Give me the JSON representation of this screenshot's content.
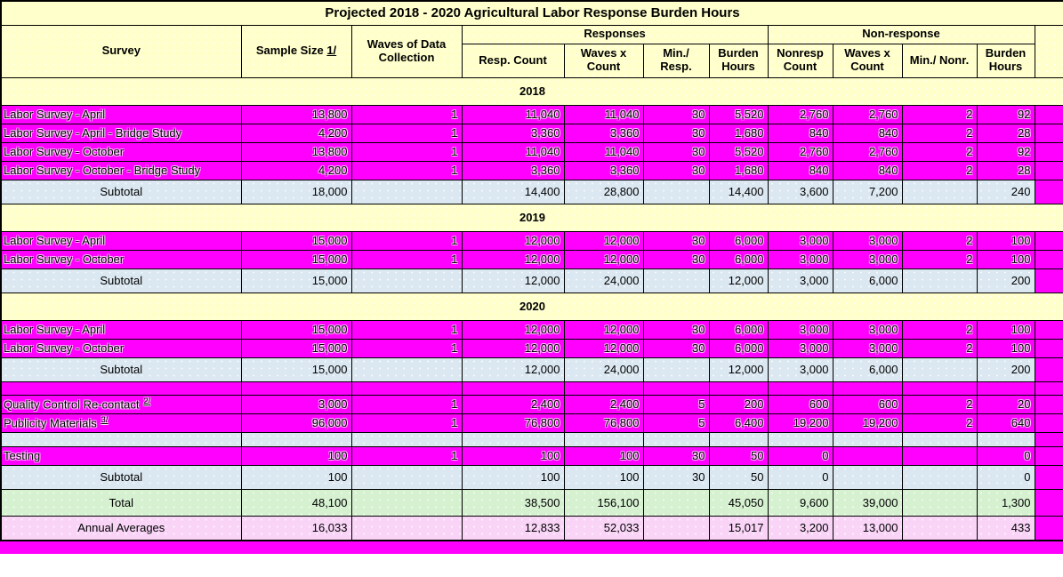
{
  "title": "Projected 2018 - 2020 Agricultural Labor Response Burden Hours",
  "colors": {
    "section_yellow": "#FFFFCC",
    "row_magenta": "#FF00FF",
    "subtotal_blue": "#DBE8F1",
    "total_green": "#D5F1D0",
    "annual_pink": "#F9D4F7",
    "border_black": "#000000"
  },
  "header": {
    "survey": "Survey",
    "sample_size": "Sample Size",
    "sample_size_footnote": "1/",
    "waves": "Waves of Data Collection",
    "responses_group": "Responses",
    "nonresponse_group": "Non-response",
    "sub": [
      "Resp. Count",
      "Waves x Count",
      "Min./ Resp.",
      "Burden Hours",
      "Nonresp Count",
      "Waves x Count",
      "Min./ Nonr.",
      "Burden Hours"
    ]
  },
  "rows": [
    {
      "type": "section",
      "label": "2018"
    },
    {
      "type": "data",
      "label": "Labor Survey - April",
      "values": [
        "13,800",
        "1",
        "11,040",
        "11,040",
        "30",
        "5,520",
        "2,760",
        "2,760",
        "2",
        "92"
      ]
    },
    {
      "type": "data",
      "label": "Labor Survey - April - Bridge Study",
      "values": [
        "4,200",
        "1",
        "3,360",
        "3,360",
        "30",
        "1,680",
        "840",
        "840",
        "2",
        "28"
      ]
    },
    {
      "type": "data",
      "label": "Labor Survey - October",
      "values": [
        "13,800",
        "1",
        "11,040",
        "11,040",
        "30",
        "5,520",
        "2,760",
        "2,760",
        "2",
        "92"
      ]
    },
    {
      "type": "data",
      "label": "Labor Survey - October - Bridge Study",
      "values": [
        "4,200",
        "1",
        "3,360",
        "3,360",
        "30",
        "1,680",
        "840",
        "840",
        "2",
        "28"
      ]
    },
    {
      "type": "subtotal",
      "label": "Subtotal",
      "values": [
        "18,000",
        "",
        "14,400",
        "28,800",
        "",
        "14,400",
        "3,600",
        "7,200",
        "",
        "240"
      ]
    },
    {
      "type": "section",
      "label": "2019"
    },
    {
      "type": "data",
      "label": "Labor Survey - April",
      "values": [
        "15,000",
        "1",
        "12,000",
        "12,000",
        "30",
        "6,000",
        "3,000",
        "3,000",
        "2",
        "100"
      ]
    },
    {
      "type": "data",
      "label": "Labor Survey - October",
      "values": [
        "15,000",
        "1",
        "12,000",
        "12,000",
        "30",
        "6,000",
        "3,000",
        "3,000",
        "2",
        "100"
      ]
    },
    {
      "type": "subtotal",
      "label": "Subtotal",
      "values": [
        "15,000",
        "",
        "12,000",
        "24,000",
        "",
        "12,000",
        "3,000",
        "6,000",
        "",
        "200"
      ]
    },
    {
      "type": "section",
      "label": "2020"
    },
    {
      "type": "data",
      "label": "Labor Survey - April",
      "values": [
        "15,000",
        "1",
        "12,000",
        "12,000",
        "30",
        "6,000",
        "3,000",
        "3,000",
        "2",
        "100"
      ]
    },
    {
      "type": "data",
      "label": "Labor Survey - October",
      "values": [
        "15,000",
        "1",
        "12,000",
        "12,000",
        "30",
        "6,000",
        "3,000",
        "3,000",
        "2",
        "100"
      ]
    },
    {
      "type": "subtotal",
      "label": "Subtotal",
      "values": [
        "15,000",
        "",
        "12,000",
        "24,000",
        "",
        "12,000",
        "3,000",
        "6,000",
        "",
        "200"
      ]
    },
    {
      "type": "blankData",
      "label": "",
      "values": [
        "",
        "",
        "",
        "",
        "",
        "",
        "",
        "",
        "",
        ""
      ]
    },
    {
      "type": "data",
      "label": "Quality Control Re-contact",
      "sup": "2/",
      "values": [
        "3,000",
        "1",
        "2,400",
        "2,400",
        "5",
        "200",
        "600",
        "600",
        "2",
        "20"
      ]
    },
    {
      "type": "data",
      "label": "Publicity Materials",
      "sup": "3/",
      "values": [
        "96,000",
        "1",
        "76,800",
        "76,800",
        "5",
        "6,400",
        "19,200",
        "19,200",
        "2",
        "640"
      ]
    },
    {
      "type": "blankSubtotal",
      "label": "",
      "values": [
        "",
        "",
        "",
        "",
        "",
        "",
        "",
        "",
        "",
        ""
      ]
    },
    {
      "type": "data",
      "label": "Testing",
      "values": [
        "100",
        "1",
        "100",
        "100",
        "30",
        "50",
        "0",
        "",
        "",
        "0"
      ]
    },
    {
      "type": "subtotal",
      "label": "Subtotal",
      "values": [
        "100",
        "",
        "100",
        "100",
        "30",
        "50",
        "0",
        "",
        "",
        "0"
      ]
    },
    {
      "type": "total",
      "label": "Total",
      "values": [
        "48,100",
        "",
        "38,500",
        "156,100",
        "",
        "45,050",
        "9,600",
        "39,000",
        "",
        "1,300"
      ]
    },
    {
      "type": "annual",
      "label": "Annual Averages",
      "values": [
        "16,033",
        "",
        "12,833",
        "52,033",
        "",
        "15,017",
        "3,200",
        "13,000",
        "",
        "433"
      ]
    }
  ],
  "column_keys": [
    "sample-size",
    "waves-of-data-collection",
    "resp-count",
    "resp-waves-x-count",
    "min-per-resp",
    "resp-burden-hours",
    "nonresp-count",
    "nonresp-waves-x-count",
    "min-per-nonresp",
    "nonresp-burden-hours"
  ]
}
